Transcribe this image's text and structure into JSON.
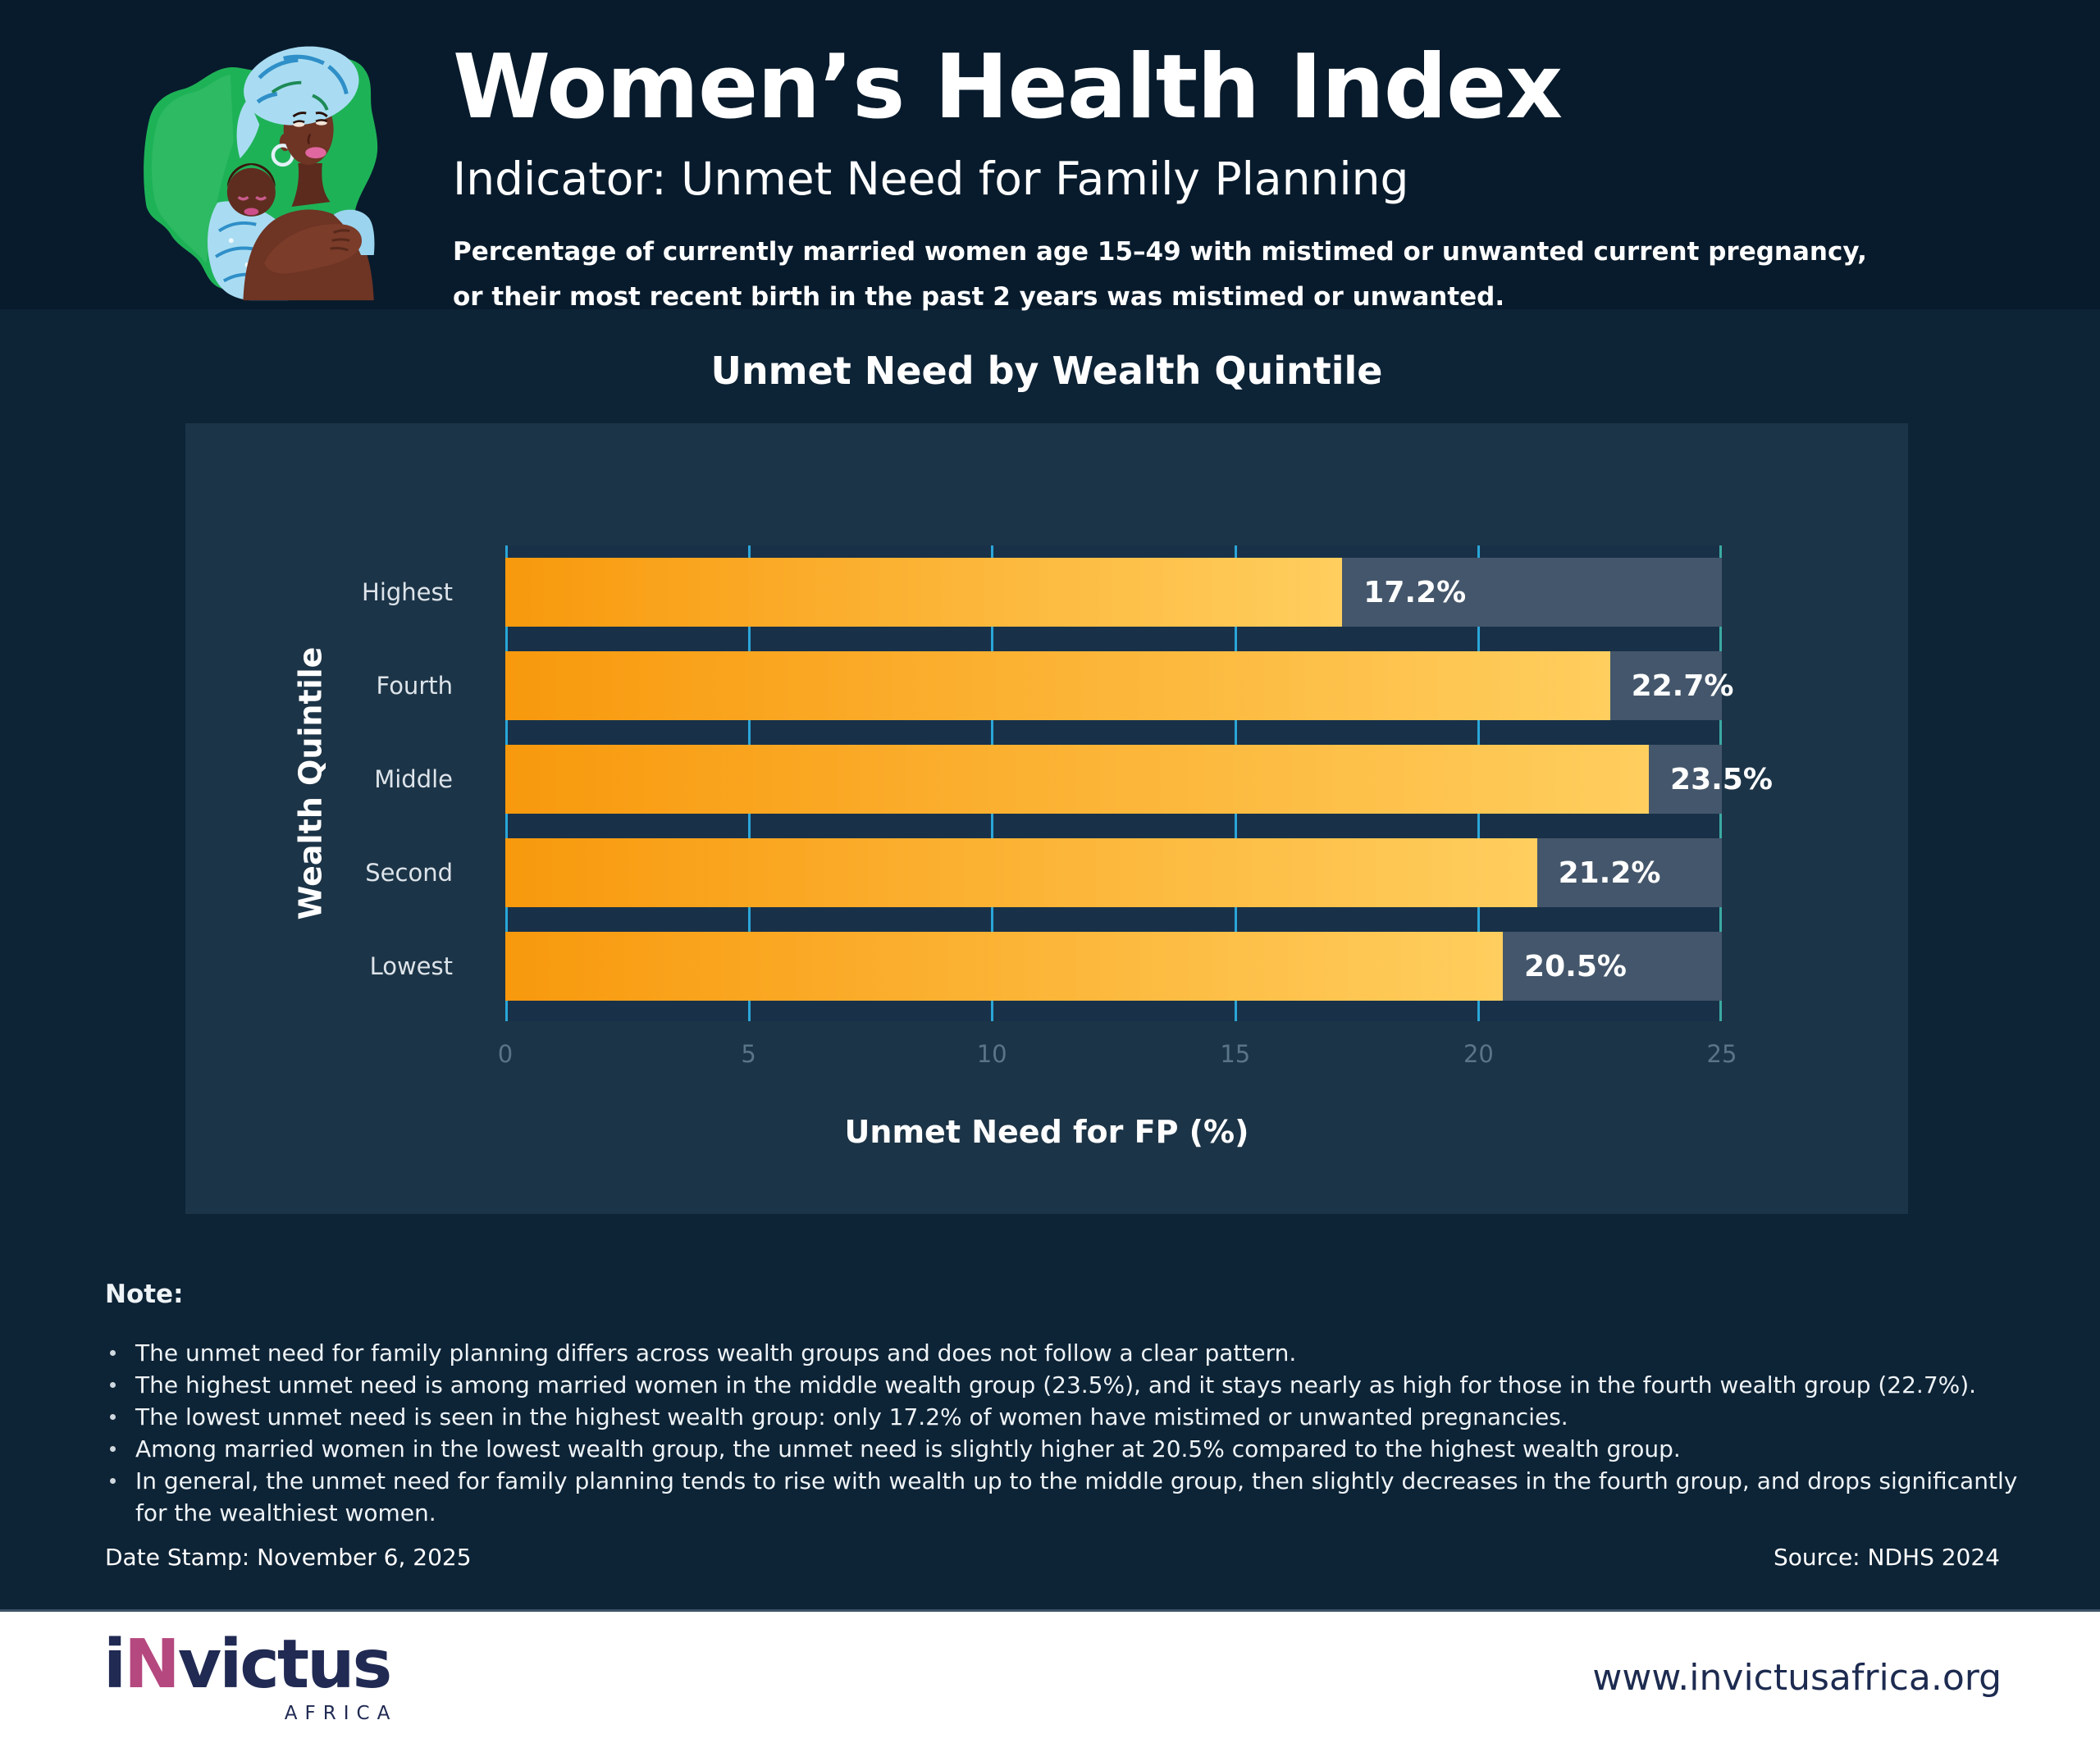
{
  "header": {
    "title": "Women’s Health Index",
    "subtitle": "Indicator: Unmet Need for Family Planning",
    "description_line1": "Percentage of currently married women age 15–49 with mistimed or unwanted current pregnancy,",
    "description_line2": "or their most recent birth in the past 2 years was mistimed or unwanted."
  },
  "chart_data": {
    "type": "bar",
    "orientation": "horizontal",
    "title": "Unmet Need by Wealth Quintile",
    "categories": [
      "Highest",
      "Fourth",
      "Middle",
      "Second",
      "Lowest"
    ],
    "values": [
      17.2,
      22.7,
      23.5,
      21.2,
      20.5
    ],
    "value_labels": [
      "17.2%",
      "22.7%",
      "23.5%",
      "21.2%",
      "20.5%"
    ],
    "xlabel": "Unmet Need for FP (%)",
    "ylabel": "Wealth Quintile",
    "xlim": [
      0,
      25
    ],
    "xticks": [
      "0",
      "5",
      "10",
      "15",
      "20",
      "25"
    ],
    "grid": true,
    "legend_position": "none",
    "colors": {
      "bar_gradient_start": "#f8990d",
      "bar_gradient_end": "#ffce5e",
      "bar_track": "#44566b",
      "gridline": "#2aa6d8",
      "gridline_end": "#3baaa2",
      "panel_background": "#1c3447",
      "page_background": "#0d2336",
      "header_background": "#081b2c"
    }
  },
  "notes": {
    "heading": "Note:",
    "bullets": [
      "The unmet need for family planning differs across wealth groups and does not follow a clear pattern.",
      "The highest unmet need is among married women in the middle wealth group (23.5%), and it stays nearly as high for those in the fourth wealth group (22.7%).",
      "The lowest unmet need is seen in the highest wealth group: only 17.2% of women have mistimed or unwanted pregnancies.",
      "Among married women in the lowest wealth group, the unmet need is slightly higher at 20.5% compared to the highest wealth group.",
      "In general, the unmet need for family planning tends to rise with wealth up to the middle group, then slightly decreases in the fourth group, and drops significantly for the wealthiest women."
    ]
  },
  "meta": {
    "date_stamp": "Date Stamp: November 6, 2025",
    "source": "Source: NDHS 2024"
  },
  "footer": {
    "brand_prefix": "i",
    "brand_accent": "N",
    "brand_suffix": "victus",
    "brand_sub": "AFRICA",
    "website": "www.invictusafrica.org"
  }
}
